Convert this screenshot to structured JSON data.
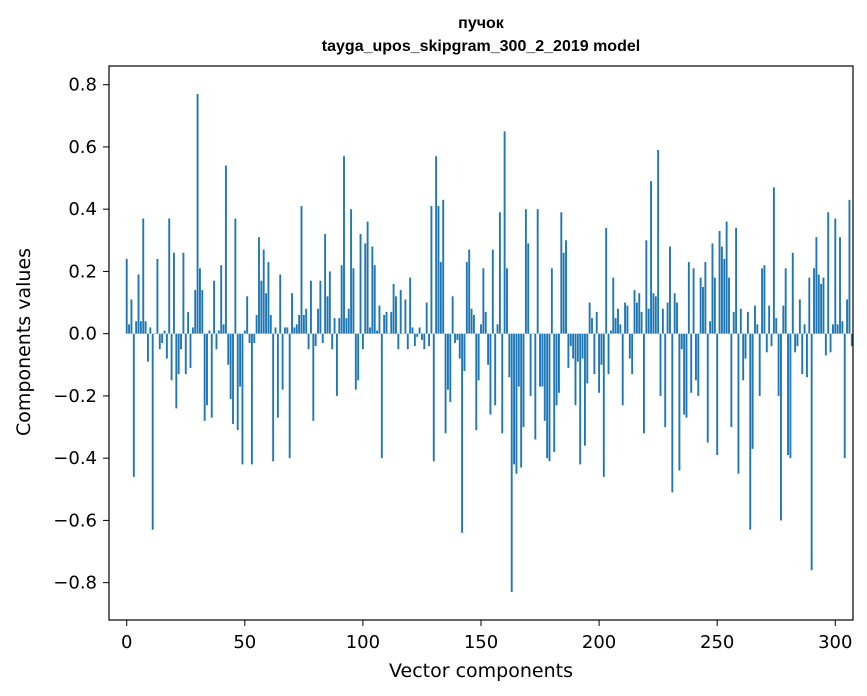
{
  "chart_data": {
    "type": "bar",
    "title": "пучок",
    "subtitle": "tayga_upos_skipgram_300_2_2019 model",
    "xlabel": "Vector components",
    "ylabel": "Components values",
    "xlim": [
      -7.5,
      307.5
    ],
    "ylim": [
      -0.92,
      0.86
    ],
    "xticks": [
      0,
      50,
      100,
      150,
      200,
      250,
      300
    ],
    "xtick_labels": [
      "0",
      "50",
      "100",
      "150",
      "200",
      "250",
      "300"
    ],
    "yticks": [
      -0.8,
      -0.6,
      -0.4,
      -0.2,
      0.0,
      0.2,
      0.4,
      0.6,
      0.8
    ],
    "ytick_labels": [
      "−0.8",
      "−0.6",
      "−0.4",
      "−0.2",
      "0.0",
      "0.2",
      "0.4",
      "0.6",
      "0.8"
    ],
    "bar_color": "#1f77b4",
    "grid": false,
    "values": [
      0.24,
      0.03,
      0.11,
      -0.46,
      0.04,
      0.19,
      0.04,
      0.37,
      0.04,
      -0.09,
      0.02,
      -0.63,
      0.0,
      0.24,
      -0.05,
      -0.03,
      0.01,
      -0.08,
      0.37,
      -0.15,
      0.26,
      -0.24,
      -0.13,
      -0.05,
      0.26,
      -0.13,
      0.07,
      -0.11,
      0.02,
      0.14,
      0.77,
      0.21,
      0.14,
      -0.28,
      -0.23,
      0.01,
      -0.27,
      0.17,
      -0.05,
      0.01,
      0.22,
      0.03,
      0.54,
      -0.1,
      -0.21,
      -0.29,
      0.37,
      -0.31,
      -0.17,
      -0.42,
      0.01,
      0.12,
      -0.03,
      -0.42,
      -0.03,
      0.06,
      0.31,
      0.17,
      0.27,
      0.13,
      0.23,
      0.06,
      -0.41,
      0.02,
      -0.27,
      0.19,
      -0.18,
      0.02,
      0.02,
      -0.4,
      0.13,
      0.02,
      0.03,
      0.06,
      0.41,
      0.06,
      0.08,
      -0.05,
      0.17,
      -0.28,
      -0.04,
      0.08,
      0.17,
      -0.03,
      0.32,
      0.12,
      0.2,
      -0.05,
      0.05,
      -0.2,
      0.05,
      0.22,
      0.57,
      0.05,
      0.08,
      0.4,
      0.21,
      -0.18,
      -0.15,
      0.32,
      -0.05,
      0.29,
      0.36,
      0.02,
      0.28,
      0.22,
      0.01,
      0.09,
      -0.4,
      0.06,
      0.07,
      0.0,
      0.07,
      0.16,
      0.12,
      -0.05,
      0.14,
      0.0,
      0.11,
      -0.05,
      0.18,
      0.02,
      -0.04,
      -0.01,
      0.02,
      -0.02,
      -0.05,
      0.1,
      -0.04,
      0.41,
      -0.41,
      0.57,
      0.41,
      0.23,
      0.43,
      -0.32,
      -0.18,
      -0.22,
      0.12,
      -0.03,
      -0.02,
      -0.08,
      -0.64,
      -0.12,
      0.23,
      0.27,
      0.08,
      0.06,
      -0.31,
      -0.15,
      0.03,
      0.21,
      0.07,
      -0.1,
      -0.26,
      0.27,
      -0.23,
      0.03,
      0.39,
      -0.32,
      0.65,
      0.21,
      -0.14,
      -0.83,
      -0.42,
      -0.45,
      -0.17,
      -0.43,
      -0.3,
      0.4,
      0.29,
      -0.2,
      0.0,
      -0.34,
      0.4,
      -0.17,
      -0.17,
      -0.28,
      -0.4,
      -0.41,
      0.21,
      -0.38,
      -0.23,
      -0.19,
      0.39,
      0.26,
      0.3,
      -0.11,
      -0.04,
      -0.08,
      -0.23,
      -0.09,
      -0.42,
      -0.08,
      -0.36,
      -0.16,
      0.1,
      0.05,
      -0.13,
      0.07,
      -0.19,
      -0.1,
      -0.46,
      0.34,
      -0.13,
      0.01,
      0.18,
      0.05,
      0.08,
      0.03,
      -0.23,
      0.1,
      0.09,
      -0.08,
      -0.13,
      0.14,
      0.1,
      0.13,
      0.07,
      -0.32,
      0.3,
      0.08,
      0.49,
      0.13,
      0.12,
      0.59,
      -0.2,
      0.08,
      -0.3,
      0.1,
      0.28,
      -0.51,
      0.13,
      0.1,
      -0.44,
      -0.05,
      -0.26,
      -0.27,
      0.23,
      -0.19,
      0.21,
      -0.15,
      -0.2,
      0.18,
      0.15,
      0.23,
      -0.35,
      0.04,
      0.29,
      0.18,
      -0.39,
      0.33,
      0.28,
      0.24,
      0.36,
      0.18,
      -0.3,
      0.07,
      0.34,
      -0.45,
      0.08,
      -0.15,
      -0.08,
      0.07,
      -0.63,
      -0.37,
      0.09,
      0.03,
      -0.2,
      0.21,
      0.22,
      -0.06,
      0.09,
      -0.04,
      0.47,
      0.05,
      -0.2,
      -0.6,
      0.09,
      0.21,
      -0.39,
      -0.4,
      0.26,
      -0.06,
      -0.04,
      0.11,
      -0.13,
      0.03,
      -0.14,
      0.18,
      -0.76,
      0.21,
      0.31,
      0.19,
      0.16,
      0.18,
      -0.07,
      0.39,
      -0.06,
      0.03,
      0.37,
      0.03,
      0.31,
      0.04,
      -0.4,
      0.11,
      0.43,
      -0.04
    ]
  }
}
